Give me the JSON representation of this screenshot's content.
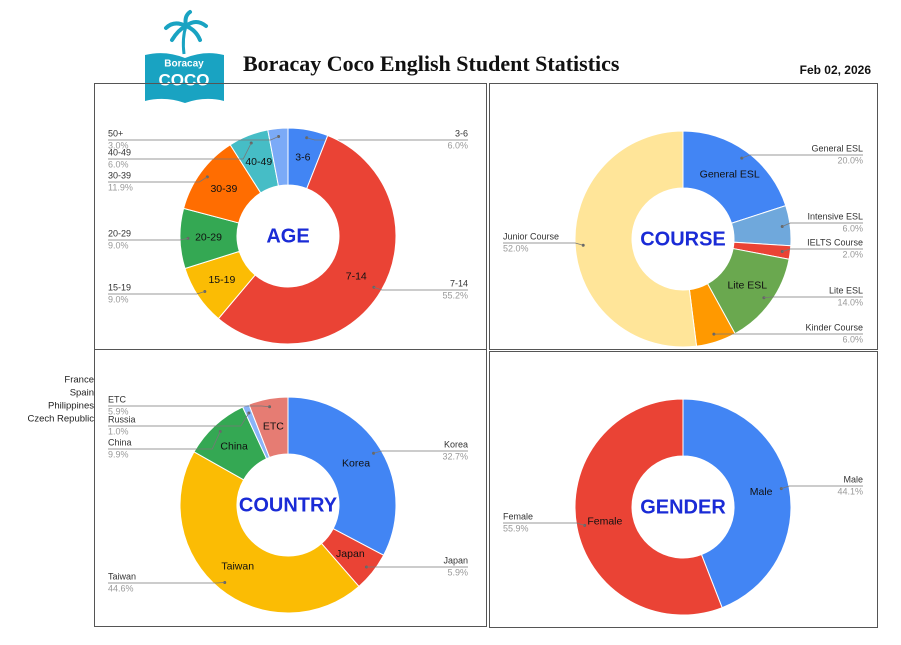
{
  "header": {
    "logo_top": "Boracay",
    "logo_bottom": "COCO",
    "title": "Boracay Coco English Student Statistics",
    "date": "Feb 02, 2026"
  },
  "chart_data": [
    {
      "type": "donut",
      "center_label": "AGE",
      "categories": [
        "3-6",
        "7-14",
        "15-19",
        "20-29",
        "30-39",
        "40-49",
        "50+"
      ],
      "values": [
        6.0,
        55.2,
        9.0,
        9.0,
        11.9,
        6.0,
        3.0
      ],
      "value_labels": [
        "6.0%",
        "55.2%",
        "9.0%",
        "9.0%",
        "11.9%",
        "6.0%",
        "3.0%"
      ],
      "colors": [
        "#4285f4",
        "#ea4335",
        "#fbbc04",
        "#34a853",
        "#ff6d01",
        "#46bdc6",
        "#7baaf7"
      ]
    },
    {
      "type": "donut",
      "center_label": "COURSE",
      "categories": [
        "General ESL",
        "Intensive ESL",
        "IELTS Course",
        "Lite ESL",
        "Kinder Course",
        "Junior Course"
      ],
      "values": [
        20.0,
        6.0,
        2.0,
        14.0,
        6.0,
        52.0
      ],
      "value_labels": [
        "20.0%",
        "6.0%",
        "2.0%",
        "14.0%",
        "6.0%",
        "52.0%"
      ],
      "colors": [
        "#4285f4",
        "#6fa8dc",
        "#ea4335",
        "#6aa84f",
        "#ff9900",
        "#ffe599"
      ]
    },
    {
      "type": "donut",
      "center_label": "COUNTRY",
      "categories": [
        "Korea",
        "Japan",
        "Taiwan",
        "China",
        "Russia",
        "ETC"
      ],
      "values": [
        32.7,
        5.9,
        44.6,
        9.9,
        1.0,
        5.9
      ],
      "value_labels": [
        "32.7%",
        "5.9%",
        "44.6%",
        "9.9%",
        "1.0%",
        "5.9%"
      ],
      "colors": [
        "#4285f4",
        "#ea4335",
        "#fbbc04",
        "#34a853",
        "#8ab4f8",
        "#e67c73"
      ],
      "annotations": [
        "France",
        "Spain",
        "Philippines",
        "Czech Republic"
      ]
    },
    {
      "type": "donut",
      "center_label": "GENDER",
      "categories": [
        "Male",
        "Female"
      ],
      "values": [
        44.1,
        55.9
      ],
      "value_labels": [
        "44.1%",
        "55.9%"
      ],
      "colors": [
        "#4285f4",
        "#ea4335"
      ]
    }
  ]
}
